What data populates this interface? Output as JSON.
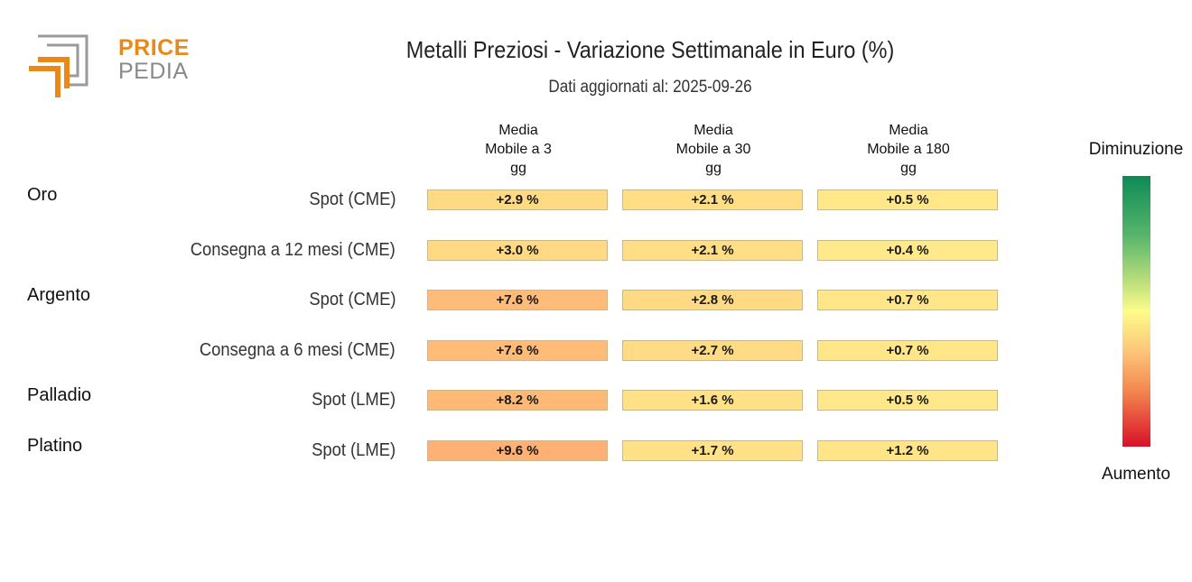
{
  "chart_data": {
    "type": "table",
    "title": "Metalli Preziosi - Variazione Settimanale in Euro (%)",
    "subtitle": "Dati aggiornati al: 2025-09-26",
    "logo": {
      "top": "PRICE",
      "bottom": "PEDIA"
    },
    "columns": [
      "Media\nMobile a 3\ngg",
      "Media\nMobile a 30\ngg",
      "Media\nMobile a 180\ngg"
    ],
    "groups": [
      {
        "name": "Oro",
        "rows": [
          {
            "label": "Spot (CME)",
            "values": [
              2.9,
              2.1,
              0.5
            ],
            "texts": [
              "+2.9 %",
              "+2.1 %",
              "+0.5 %"
            ]
          },
          {
            "label": "Consegna a 12 mesi (CME)",
            "values": [
              3.0,
              2.1,
              0.4
            ],
            "texts": [
              "+3.0 %",
              "+2.1 %",
              "+0.4 %"
            ]
          }
        ]
      },
      {
        "name": "Argento",
        "rows": [
          {
            "label": "Spot (CME)",
            "values": [
              7.6,
              2.8,
              0.7
            ],
            "texts": [
              "+7.6 %",
              "+2.8 %",
              "+0.7 %"
            ]
          },
          {
            "label": "Consegna a 6 mesi (CME)",
            "values": [
              7.6,
              2.7,
              0.7
            ],
            "texts": [
              "+7.6 %",
              "+2.7 %",
              "+0.7 %"
            ]
          }
        ]
      },
      {
        "name": "Palladio",
        "rows": [
          {
            "label": "Spot (LME)",
            "values": [
              8.2,
              1.6,
              0.5
            ],
            "texts": [
              "+8.2 %",
              "+1.6 %",
              "+0.5 %"
            ]
          }
        ]
      },
      {
        "name": "Platino",
        "rows": [
          {
            "label": "Spot (LME)",
            "values": [
              9.6,
              1.7,
              1.2
            ],
            "texts": [
              "+9.6 %",
              "+1.7 %",
              "+1.2 %"
            ]
          }
        ]
      }
    ],
    "legend": {
      "top": "Diminuzione",
      "bottom": "Aumento"
    },
    "colors": {
      "logo_orange": "#e8891a",
      "logo_gray": "#8a8a8a",
      "scale": [
        "#0e8a55",
        "#fdfc8a",
        "#d8102a"
      ]
    }
  }
}
